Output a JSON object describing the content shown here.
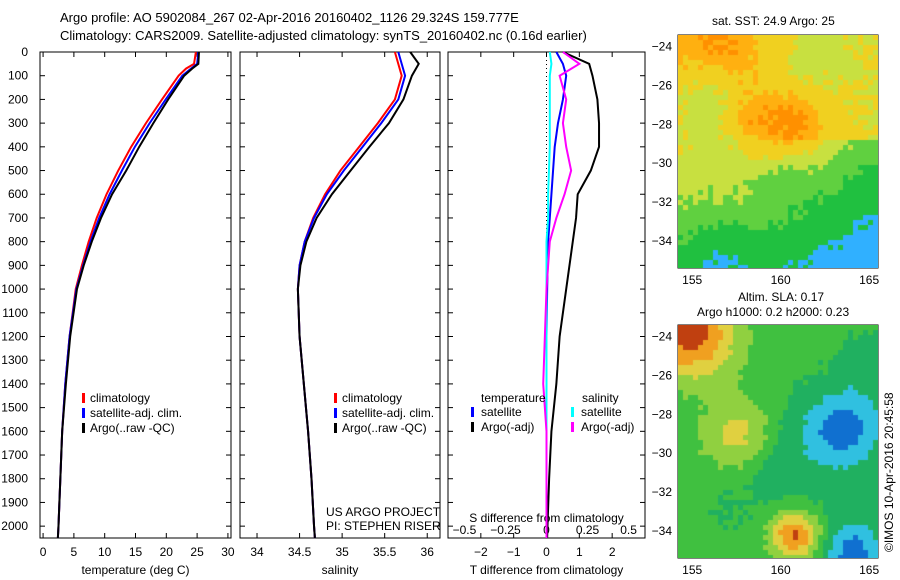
{
  "title_line1": "Argo profile: AO 5902084_267 02-Apr-2016 20160402_1126 29.324S 159.777E",
  "title_line2": "Climatology: CARS2009. Satellite-adjusted climatology: synTS_20160402.nc (0.16d earlier)",
  "credit": "US ARGO PROJECT",
  "pi": "PI: STEPHEN RISER",
  "watermark": "©IMOS 10-Apr-2016 20:45:58",
  "colors": {
    "climatology": "#ff0000",
    "satellite": "#0000ff",
    "argo": "#000000",
    "sal_sat": "#00ffff",
    "sal_argo": "#ff00ff"
  },
  "chart_data": [
    {
      "type": "line",
      "xlabel": "temperature (deg C)",
      "xlim": [
        -0.5,
        30.5
      ],
      "ylim": [
        2050,
        0
      ],
      "xticks": [
        0,
        5,
        10,
        15,
        20,
        25,
        30
      ],
      "yticks": [
        0,
        100,
        200,
        300,
        400,
        500,
        600,
        700,
        800,
        900,
        1000,
        1100,
        1200,
        1300,
        1400,
        1500,
        1600,
        1700,
        1800,
        1900,
        2000
      ],
      "depth": [
        0,
        50,
        70,
        100,
        200,
        300,
        400,
        500,
        600,
        700,
        800,
        900,
        1000,
        1200,
        1400,
        1600,
        1800,
        2000,
        2050
      ],
      "legend": [
        "climatology",
        "satellite-adj. clim.",
        "Argo(..raw -QC)"
      ],
      "series": [
        {
          "name": "climatology",
          "color": "#ff0000",
          "values": [
            24.8,
            24.5,
            23.2,
            22.0,
            19.3,
            16.7,
            14.3,
            12.2,
            10.3,
            8.7,
            7.4,
            6.3,
            5.3,
            4.3,
            3.6,
            3.1,
            2.8,
            2.5,
            2.4
          ]
        },
        {
          "name": "satellite-adj. clim.",
          "color": "#0000ff",
          "values": [
            25.2,
            25.0,
            24.0,
            22.6,
            19.9,
            17.3,
            14.9,
            12.8,
            10.8,
            9.1,
            7.7,
            6.5,
            5.4,
            4.3,
            3.6,
            3.1,
            2.8,
            2.5,
            2.4
          ]
        },
        {
          "name": "Argo(..raw -QC)",
          "color": "#000000",
          "values": [
            25.3,
            25.2,
            24.2,
            22.9,
            20.3,
            17.9,
            15.6,
            13.5,
            11.2,
            9.4,
            7.9,
            6.6,
            5.5,
            4.4,
            3.7,
            3.1,
            2.8,
            2.5,
            2.4
          ]
        }
      ]
    },
    {
      "type": "line",
      "xlabel": "salinity",
      "xlim": [
        33.8,
        36.15
      ],
      "ylim": [
        2050,
        0
      ],
      "xticks": [
        34,
        34.5,
        35,
        35.5,
        36
      ],
      "depth": [
        0,
        50,
        100,
        200,
        300,
        400,
        500,
        600,
        700,
        800,
        900,
        1000,
        1200,
        1400,
        1600,
        1800,
        2000,
        2050
      ],
      "legend": [
        "climatology",
        "satellite-adj. clim.",
        "Argo(..raw -QC)"
      ],
      "series": [
        {
          "name": "climatology",
          "color": "#ff0000",
          "values": [
            35.62,
            35.66,
            35.7,
            35.62,
            35.42,
            35.2,
            34.98,
            34.8,
            34.66,
            34.56,
            34.5,
            34.48,
            34.5,
            34.55,
            34.6,
            34.64,
            34.67,
            34.68
          ]
        },
        {
          "name": "satellite-adj. clim.",
          "color": "#0000ff",
          "values": [
            35.66,
            35.7,
            35.74,
            35.66,
            35.46,
            35.24,
            35.02,
            34.82,
            34.67,
            34.56,
            34.5,
            34.48,
            34.5,
            34.55,
            34.6,
            34.64,
            34.67,
            34.68
          ]
        },
        {
          "name": "Argo(..raw -QC)",
          "color": "#000000",
          "values": [
            35.8,
            35.9,
            35.82,
            35.72,
            35.55,
            35.32,
            35.1,
            34.88,
            34.7,
            34.58,
            34.51,
            34.48,
            34.5,
            34.55,
            34.6,
            34.64,
            34.67,
            34.68
          ]
        }
      ]
    },
    {
      "type": "line",
      "xlabel": "T difference from climatology",
      "x2label": "S difference from climatology",
      "xlim": [
        -3,
        3
      ],
      "x2lim": [
        -0.6,
        0.6
      ],
      "ylim": [
        2050,
        0
      ],
      "xticks": [
        -2,
        -1,
        0,
        1,
        2
      ],
      "x2ticks": [
        "-0.5",
        "-0.25",
        "0",
        "0.25",
        "0.5"
      ],
      "depth": [
        0,
        50,
        100,
        200,
        300,
        400,
        500,
        600,
        700,
        800,
        1000,
        1200,
        1400,
        1600,
        1800,
        2000,
        2050
      ],
      "legend_t": {
        "title": "temperature",
        "items": [
          "satellite",
          "Argo(-adj)"
        ]
      },
      "legend_s": {
        "title": "salinity",
        "items": [
          "satellite",
          "Argo(-adj)"
        ]
      },
      "series": [
        {
          "name": "T satellite",
          "color": "#0000ff",
          "axis": "T",
          "values": [
            0.3,
            0.5,
            0.6,
            0.5,
            0.35,
            0.25,
            0.2,
            0.15,
            0.1,
            0.05,
            0.02,
            0.0,
            0,
            0,
            0,
            0,
            0
          ]
        },
        {
          "name": "T Argo(-adj)",
          "color": "#000000",
          "axis": "T",
          "values": [
            0.5,
            1.3,
            1.4,
            1.55,
            1.6,
            1.6,
            1.35,
            0.95,
            0.9,
            0.8,
            0.6,
            0.4,
            0.3,
            0.15,
            0.08,
            0.03,
            0.02
          ]
        },
        {
          "name": "S satellite",
          "color": "#00ffff",
          "axis": "S",
          "values": [
            0.02,
            0.03,
            0.02,
            0.02,
            0.02,
            0.02,
            0.015,
            0.01,
            0.01,
            0.0,
            0.0,
            0,
            0,
            0,
            0,
            0,
            0
          ]
        },
        {
          "name": "S Argo(-adj)",
          "color": "#ff00ff",
          "axis": "S",
          "values": [
            0.1,
            0.2,
            0.08,
            0.12,
            0.1,
            0.12,
            0.15,
            0.11,
            0.06,
            0.02,
            0.0,
            -0.01,
            -0.02,
            0,
            0,
            0,
            0
          ]
        }
      ]
    },
    {
      "type": "heatmap",
      "title": "sat. SST: 24.9 Argo: 25",
      "xticks": [
        155,
        160,
        165
      ],
      "yticks": [
        -24,
        -26,
        -28,
        -30,
        -32,
        -34
      ],
      "xlim": [
        154.2,
        165.5
      ],
      "ylim": [
        -35.4,
        -23.4
      ],
      "marker": [
        159.777,
        -29.324
      ]
    },
    {
      "type": "heatmap",
      "title": "Altim. SLA: 0.17",
      "subtitle": "Argo h1000: 0.2 h2000: 0.23",
      "xticks": [
        155,
        160,
        165
      ],
      "yticks": [
        -24,
        -26,
        -28,
        -30,
        -32,
        -34
      ],
      "xlim": [
        154.2,
        165.5
      ],
      "ylim": [
        -35.4,
        -23.4
      ],
      "marker": [
        159.777,
        -29.324
      ]
    }
  ]
}
